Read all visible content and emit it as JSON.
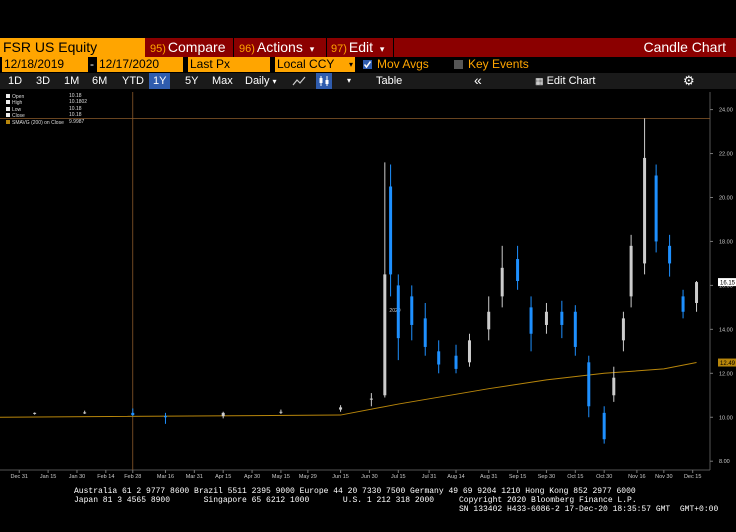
{
  "header": {
    "ticker": "FSR US Equity",
    "compare_num": "95)",
    "compare_label": "Compare",
    "actions_num": "96)",
    "actions_label": "Actions",
    "actions_caret": "▾",
    "edit_num": "97)",
    "edit_label": "Edit",
    "edit_caret": "▾",
    "title": "Candle Chart"
  },
  "settings": {
    "start_date": "12/18/2019",
    "end_date": "12/17/2020",
    "price_field": "Last Px",
    "currency": "Local CCY",
    "mov_avgs_label": "Mov Avgs",
    "mov_avgs_checked": true,
    "key_events_label": "Key Events",
    "key_events_checked": false
  },
  "periods": [
    "1D",
    "3D",
    "1M",
    "6M",
    "YTD",
    "1Y",
    "5Y",
    "Max"
  ],
  "active_period": "1Y",
  "toolbar": {
    "frequency": "Daily",
    "frequency_caret": "▾",
    "table_label": "Table",
    "collapse_icon": "«",
    "edit_chart_label": "Edit Chart"
  },
  "legend": [
    {
      "label": "Open",
      "value": "10.18"
    },
    {
      "label": "High",
      "value": "10.1802"
    },
    {
      "label": "Low",
      "value": "10.18"
    },
    {
      "label": "Close",
      "value": "10.18"
    },
    {
      "label": "SMAVG (200)  on Close",
      "value": "9.9987"
    }
  ],
  "chart_data": {
    "type": "candlestick",
    "x_ticks": [
      "Dec 31",
      "Jan 15",
      "Jan 30",
      "Feb 14",
      "Feb 28",
      "Mar 16",
      "Mar 31",
      "Apr 15",
      "Apr 30",
      "May 15",
      "May 29",
      "Jun 15",
      "Jun 30",
      "Jul 15",
      "Jul 31",
      "Aug 14",
      "Aug 31",
      "Sep 15",
      "Sep 30",
      "Oct 15",
      "Oct 30",
      "Nov 16",
      "Nov 30",
      "Dec 15"
    ],
    "year_label": "2020",
    "y_ticks": [
      "8.00",
      "10.00",
      "12.00",
      "14.00",
      "16.00",
      "18.00",
      "20.00",
      "22.00",
      "24.00"
    ],
    "ylim": [
      7.6,
      24.8
    ],
    "last_price_label": "16.15",
    "sma_label": "12.49",
    "crosshair": {
      "date": "Feb 28",
      "price": 23.6
    },
    "candles": [
      {
        "x": "Dec 18",
        "o": 10.18,
        "h": 10.2,
        "l": 10.14,
        "c": 10.18
      },
      {
        "x": "Jan 8",
        "o": 10.16,
        "h": 10.22,
        "l": 10.12,
        "c": 10.2
      },
      {
        "x": "Feb 3",
        "o": 10.2,
        "h": 10.3,
        "l": 10.15,
        "c": 10.22
      },
      {
        "x": "Feb 28",
        "o": 10.2,
        "h": 10.4,
        "l": 10.05,
        "c": 10.1
      },
      {
        "x": "Mar 16",
        "o": 10.05,
        "h": 10.2,
        "l": 9.7,
        "c": 10.0
      },
      {
        "x": "Apr 15",
        "o": 10.05,
        "h": 10.25,
        "l": 9.95,
        "c": 10.2
      },
      {
        "x": "May 15",
        "o": 10.25,
        "h": 10.35,
        "l": 10.15,
        "c": 10.25
      },
      {
        "x": "Jun 15",
        "o": 10.35,
        "h": 10.55,
        "l": 10.25,
        "c": 10.45
      },
      {
        "x": "Jul 1",
        "o": 10.8,
        "h": 11.1,
        "l": 10.5,
        "c": 10.85
      },
      {
        "x": "Jul 8",
        "o": 11.0,
        "h": 21.6,
        "l": 10.9,
        "c": 16.5
      },
      {
        "x": "Jul 11",
        "o": 20.5,
        "h": 21.5,
        "l": 15.5,
        "c": 16.5
      },
      {
        "x": "Jul 15",
        "o": 16.0,
        "h": 16.5,
        "l": 12.6,
        "c": 13.6
      },
      {
        "x": "Jul 22",
        "o": 15.5,
        "h": 16.0,
        "l": 13.5,
        "c": 14.2
      },
      {
        "x": "Jul 29",
        "o": 14.5,
        "h": 15.2,
        "l": 12.8,
        "c": 13.2
      },
      {
        "x": "Aug 5",
        "o": 13.0,
        "h": 13.5,
        "l": 12.0,
        "c": 12.4
      },
      {
        "x": "Aug 14",
        "o": 12.8,
        "h": 13.3,
        "l": 12.0,
        "c": 12.2
      },
      {
        "x": "Aug 21",
        "o": 12.5,
        "h": 13.8,
        "l": 12.3,
        "c": 13.5
      },
      {
        "x": "Aug 31",
        "o": 14.0,
        "h": 15.5,
        "l": 13.5,
        "c": 14.8
      },
      {
        "x": "Sep 7",
        "o": 15.5,
        "h": 17.8,
        "l": 15.0,
        "c": 16.8
      },
      {
        "x": "Sep 15",
        "o": 17.2,
        "h": 17.8,
        "l": 15.8,
        "c": 16.2
      },
      {
        "x": "Sep 22",
        "o": 15.0,
        "h": 15.5,
        "l": 13.0,
        "c": 13.8
      },
      {
        "x": "Sep 30",
        "o": 14.2,
        "h": 15.2,
        "l": 13.8,
        "c": 14.8
      },
      {
        "x": "Oct 8",
        "o": 14.8,
        "h": 15.3,
        "l": 13.6,
        "c": 14.2
      },
      {
        "x": "Oct 15",
        "o": 14.8,
        "h": 15.1,
        "l": 12.8,
        "c": 13.2
      },
      {
        "x": "Oct 22",
        "o": 12.5,
        "h": 12.8,
        "l": 10.0,
        "c": 10.5
      },
      {
        "x": "Oct 30",
        "o": 10.2,
        "h": 10.5,
        "l": 8.8,
        "c": 9.0
      },
      {
        "x": "Nov 4",
        "o": 11.0,
        "h": 12.3,
        "l": 10.7,
        "c": 11.8
      },
      {
        "x": "Nov 9",
        "o": 13.5,
        "h": 14.8,
        "l": 13.0,
        "c": 14.5
      },
      {
        "x": "Nov 13",
        "o": 15.5,
        "h": 18.3,
        "l": 15.0,
        "c": 17.8
      },
      {
        "x": "Nov 20",
        "o": 17.0,
        "h": 23.6,
        "l": 16.5,
        "c": 21.8
      },
      {
        "x": "Nov 26",
        "o": 21.0,
        "h": 21.5,
        "l": 17.5,
        "c": 18.0
      },
      {
        "x": "Dec 3",
        "o": 17.8,
        "h": 18.3,
        "l": 16.4,
        "c": 17.0
      },
      {
        "x": "Dec 10",
        "o": 15.5,
        "h": 15.8,
        "l": 14.5,
        "c": 14.8
      },
      {
        "x": "Dec 17",
        "o": 15.2,
        "h": 16.2,
        "l": 14.8,
        "c": 16.15
      }
    ],
    "sma": [
      {
        "x": "Dec 18",
        "y": 10.0
      },
      {
        "x": "Jun 15",
        "y": 10.1
      },
      {
        "x": "Jul 15",
        "y": 10.6
      },
      {
        "x": "Aug 31",
        "y": 11.3
      },
      {
        "x": "Sep 30",
        "y": 11.7
      },
      {
        "x": "Oct 30",
        "y": 12.0
      },
      {
        "x": "Nov 30",
        "y": 12.2
      },
      {
        "x": "Dec 17",
        "y": 12.49
      }
    ]
  },
  "footer": {
    "line1": "Australia 61 2 9777 8600 Brazil 5511 2395 9000 Europe 44 20 7330 7500 Germany 49 69 9204 1210 Hong Kong 852 2977 6000",
    "line2a": "Japan 81 3 4565 8900       Singapore 65 6212 1000       U.S. 1 212 318 2000",
    "line2b": "Copyright 2020 Bloomberg Finance L.P.",
    "line3": "SN 133402 H433-6086-2 17-Dec-20 18:35:57 GMT  GMT+0:00"
  },
  "colors": {
    "up": "#cccccc",
    "down": "#1e90ff",
    "sma": "#b8860b",
    "orange": "#ffa500",
    "red_bar": "#8b0000",
    "active_period": "#2f5cae"
  }
}
